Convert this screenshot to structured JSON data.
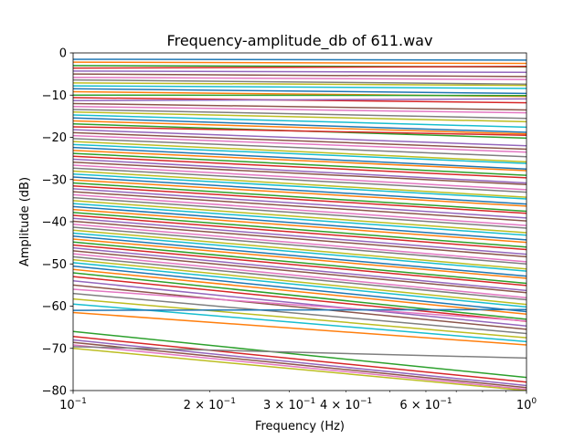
{
  "chart_data": {
    "type": "line",
    "title": "Frequency-amplitude_db of 611.wav",
    "xlabel": "Frequency (Hz)",
    "ylabel": "Amplitude (dB)",
    "xscale": "log",
    "xlim": [
      0.1,
      1.0
    ],
    "ylim": [
      -80,
      0
    ],
    "grid": false,
    "legend": "none",
    "x": [
      0.1,
      1.0
    ],
    "y_ticks": [
      0,
      -10,
      -20,
      -30,
      -40,
      -50,
      -60,
      -70,
      -80
    ],
    "y_tick_labels": [
      "0",
      "−10",
      "−20",
      "−30",
      "−40",
      "−50",
      "−60",
      "−70",
      "−80"
    ],
    "x_major_ticks": [
      0.1,
      1.0
    ],
    "x_major_labels": [
      {
        "base": "10",
        "exp": "−1"
      },
      {
        "base": "10",
        "exp": "0"
      }
    ],
    "x_minor_ticks": [
      0.2,
      0.3,
      0.4,
      0.5,
      0.6,
      0.7,
      0.8,
      0.9
    ],
    "x_minor_labels": [
      {
        "value": 0.2,
        "mant": "2",
        "base": "10",
        "exp": "−1"
      },
      {
        "value": 0.3,
        "mant": "3",
        "base": "10",
        "exp": "−1"
      },
      {
        "value": 0.4,
        "mant": "4",
        "base": "10",
        "exp": "−1"
      },
      {
        "value": 0.6,
        "mant": "6",
        "base": "10",
        "exp": "−1"
      }
    ],
    "colors": [
      "#1f77b4",
      "#ff7f0e",
      "#2ca02c",
      "#d62728",
      "#9467bd",
      "#8c564b",
      "#e377c2",
      "#7f7f7f",
      "#bcbd22",
      "#17becf"
    ],
    "series": [
      {
        "values": [
          -1.5,
          -1.7
        ]
      },
      {
        "values": [
          -2.2,
          -2.5
        ]
      },
      {
        "values": [
          -3.0,
          -3.3
        ]
      },
      {
        "values": [
          -3.6,
          -3.2
        ]
      },
      {
        "values": [
          -4.3,
          -4.6
        ]
      },
      {
        "values": [
          -5.0,
          -5.6
        ]
      },
      {
        "values": [
          -5.8,
          -6.3
        ]
      },
      {
        "values": [
          -6.4,
          -7.4
        ]
      },
      {
        "values": [
          -7.1,
          -7.7
        ]
      },
      {
        "values": [
          -7.8,
          -8.4
        ]
      },
      {
        "values": [
          -8.5,
          -9.6
        ]
      },
      {
        "values": [
          -9.2,
          -10.3
        ]
      },
      {
        "values": [
          -10.0,
          -10.1
        ]
      },
      {
        "values": [
          -10.6,
          -11.8
        ]
      },
      {
        "values": [
          -11.3,
          -10.9
        ]
      },
      {
        "values": [
          -12.0,
          -13.5
        ]
      },
      {
        "values": [
          -12.7,
          -14.2
        ]
      },
      {
        "values": [
          -13.4,
          -15.5
        ]
      },
      {
        "values": [
          -14.0,
          -16.3
        ]
      },
      {
        "values": [
          -14.7,
          -17.6
        ]
      },
      {
        "values": [
          -15.4,
          -18.8
        ]
      },
      {
        "values": [
          -16.1,
          -19.2
        ]
      },
      {
        "values": [
          -16.8,
          -20.2
        ]
      },
      {
        "values": [
          -17.5,
          -19.5
        ]
      },
      {
        "values": [
          -18.2,
          -22.0
        ]
      },
      {
        "values": [
          -18.9,
          -22.8
        ]
      },
      {
        "values": [
          -19.6,
          -23.5
        ]
      },
      {
        "values": [
          -20.3,
          -24.6
        ]
      },
      {
        "values": [
          -21.0,
          -25.8
        ]
      },
      {
        "values": [
          -21.7,
          -26.2
        ]
      },
      {
        "values": [
          -22.4,
          -27.5
        ]
      },
      {
        "values": [
          -23.1,
          -27.9
        ]
      },
      {
        "values": [
          -23.8,
          -29.0
        ]
      },
      {
        "values": [
          -24.5,
          -29.6
        ]
      },
      {
        "values": [
          -25.2,
          -30.8
        ]
      },
      {
        "values": [
          -25.9,
          -31.2
        ]
      },
      {
        "values": [
          -26.6,
          -32.4
        ]
      },
      {
        "values": [
          -27.3,
          -33.0
        ]
      },
      {
        "values": [
          -28.0,
          -34.2
        ]
      },
      {
        "values": [
          -28.7,
          -34.6
        ]
      },
      {
        "values": [
          -29.4,
          -35.8
        ]
      },
      {
        "values": [
          -30.1,
          -36.3
        ]
      },
      {
        "values": [
          -30.8,
          -37.5
        ]
      },
      {
        "values": [
          -31.5,
          -38.0
        ]
      },
      {
        "values": [
          -32.2,
          -39.1
        ]
      },
      {
        "values": [
          -32.9,
          -39.8
        ]
      },
      {
        "values": [
          -33.6,
          -40.9
        ]
      },
      {
        "values": [
          -34.3,
          -41.5
        ]
      },
      {
        "values": [
          -35.0,
          -42.6
        ]
      },
      {
        "values": [
          -35.7,
          -43.2
        ]
      },
      {
        "values": [
          -36.4,
          -44.3
        ]
      },
      {
        "values": [
          -37.1,
          -44.9
        ]
      },
      {
        "values": [
          -37.8,
          -46.0
        ]
      },
      {
        "values": [
          -38.5,
          -46.6
        ]
      },
      {
        "values": [
          -39.2,
          -47.7
        ]
      },
      {
        "values": [
          -39.9,
          -48.3
        ]
      },
      {
        "values": [
          -40.6,
          -49.5
        ]
      },
      {
        "values": [
          -41.3,
          -50.0
        ]
      },
      {
        "values": [
          -42.0,
          -51.2
        ]
      },
      {
        "values": [
          -42.7,
          -51.7
        ]
      },
      {
        "values": [
          -43.4,
          -52.9
        ]
      },
      {
        "values": [
          -44.1,
          -53.4
        ]
      },
      {
        "values": [
          -44.8,
          -54.6
        ]
      },
      {
        "values": [
          -45.5,
          -55.1
        ]
      },
      {
        "values": [
          -46.2,
          -56.3
        ]
      },
      {
        "values": [
          -46.9,
          -56.8
        ]
      },
      {
        "values": [
          -47.6,
          -58.0
        ]
      },
      {
        "values": [
          -48.3,
          -58.5
        ]
      },
      {
        "values": [
          -49.0,
          -59.6
        ]
      },
      {
        "values": [
          -49.7,
          -60.2
        ]
      },
      {
        "values": [
          -50.5,
          -61.3
        ]
      },
      {
        "values": [
          -51.3,
          -61.9
        ]
      },
      {
        "values": [
          -52.1,
          -63.1
        ]
      },
      {
        "values": [
          -53.0,
          -63.6
        ]
      },
      {
        "values": [
          -54.0,
          -64.7
        ]
      },
      {
        "values": [
          -55.0,
          -65.5
        ]
      },
      {
        "values": [
          -56.0,
          -63.5
        ]
      },
      {
        "values": [
          -57.0,
          -66.5
        ]
      },
      {
        "values": [
          -58.3,
          -67.5
        ]
      },
      {
        "values": [
          -59.5,
          -68.4
        ]
      },
      {
        "values": [
          -61.0,
          -60.8
        ]
      },
      {
        "values": [
          -61.5,
          -69.2
        ]
      },
      {
        "values": [
          -66.0,
          -76.9
        ]
      },
      {
        "values": [
          -67.2,
          -78.0
        ]
      },
      {
        "values": [
          -68.0,
          -78.8
        ]
      },
      {
        "values": [
          -68.6,
          -79.3
        ]
      },
      {
        "values": [
          -69.2,
          -79.7
        ]
      },
      {
        "values": [
          -69.6,
          -72.3
        ]
      },
      {
        "values": [
          -70.0,
          -80.0
        ]
      }
    ]
  }
}
